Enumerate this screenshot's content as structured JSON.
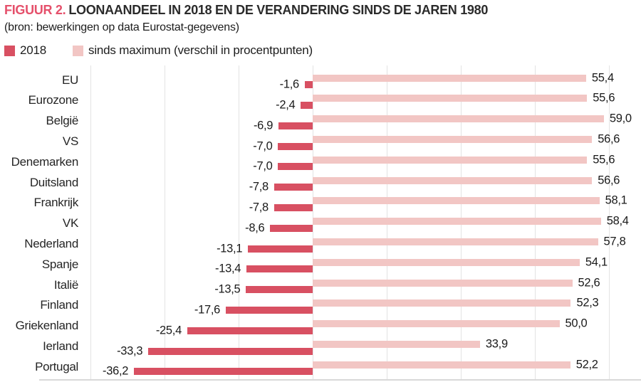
{
  "header": {
    "figure_label": "FIGUUR 2.",
    "title": "LOONAANDEEL IN 2018 EN DE VERANDERING SINDS DE JAREN 1980",
    "source": "(bron: bewerkingen op data Eurostat-gegevens)"
  },
  "colors": {
    "series_2018": "#d85062",
    "series_sinds_maximum": "#f2c6c4",
    "figure_label_accent": "#e5506b",
    "gridline": "#e3e3e3",
    "baseline": "#d8d8d8"
  },
  "chart_data": {
    "type": "bar",
    "orientation": "horizontal",
    "title": "LOONAANDEEL IN 2018 EN DE VERANDERING SINDS DE JAREN 1980",
    "subtitle": "(bron: bewerkingen op data Eurostat-gegevens)",
    "legend_position": "top-left",
    "grid": "vertical",
    "value_label_format": "comma-decimal-one-place",
    "xlim": [
      -47,
      66
    ],
    "gridline_values": [
      -45,
      -30,
      -15,
      0,
      15,
      30,
      45,
      60
    ],
    "categories": [
      "EU",
      "Eurozone",
      "België",
      "VS",
      "Denemarken",
      "Duitsland",
      "Frankrijk",
      "VK",
      "Nederland",
      "Spanje",
      "Italië",
      "Finland",
      "Griekenland",
      "Ierland",
      "Portugal"
    ],
    "series": [
      {
        "name": "2018",
        "color": "#d85062",
        "direction": "negative",
        "values": [
          -1.6,
          -2.4,
          -6.9,
          -7.0,
          -7.0,
          -7.8,
          -7.8,
          -8.6,
          -13.1,
          -13.4,
          -13.5,
          -17.6,
          -25.4,
          -33.3,
          -36.2
        ],
        "value_labels": [
          "-1,6",
          "-2,4",
          "-6,9",
          "-7,0",
          "-7,0",
          "-7,8",
          "-7,8",
          "-8,6",
          "-13,1",
          "-13,4",
          "-13,5",
          "-17,6",
          "-25,4",
          "-33,3",
          "-36,2"
        ]
      },
      {
        "name": "sinds maximum (verschil in procentpunten)",
        "color": "#f2c6c4",
        "direction": "positive",
        "values": [
          55.4,
          55.6,
          59.0,
          56.6,
          55.6,
          56.6,
          58.1,
          58.4,
          57.8,
          54.1,
          52.6,
          52.3,
          50.0,
          33.9,
          52.2
        ],
        "value_labels": [
          "55,4",
          "55,6",
          "59,0",
          "56,6",
          "55,6",
          "56,6",
          "58,1",
          "58,4",
          "57,8",
          "54,1",
          "52,6",
          "52,3",
          "50,0",
          "33,9",
          "52,2"
        ]
      }
    ]
  }
}
